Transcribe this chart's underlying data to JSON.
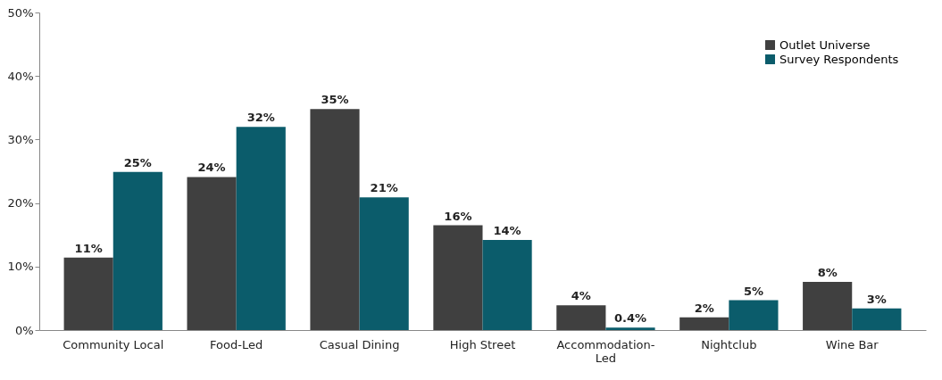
{
  "chart_data": {
    "type": "bar",
    "categories": [
      "Community Local",
      "Food-Led",
      "Casual Dining",
      "High Street",
      "Accommodation-Led",
      "Nightclub",
      "Wine Bar"
    ],
    "series": [
      {
        "name": "Outlet Universe",
        "color": "#404040",
        "values": [
          11.4,
          24.1,
          34.8,
          16.5,
          3.9,
          2.0,
          7.6
        ],
        "value_labels": [
          "11%",
          "24%",
          "35%",
          "16%",
          "4%",
          "2%",
          "8%"
        ]
      },
      {
        "name": "Survey Respondents",
        "color": "#0b5c6b",
        "values": [
          24.9,
          32.0,
          20.9,
          14.2,
          0.4,
          4.7,
          3.4
        ],
        "value_labels": [
          "25%",
          "32%",
          "21%",
          "14%",
          "0.4%",
          "5%",
          "3%"
        ]
      }
    ],
    "ylim": [
      0,
      50
    ],
    "yticks": [
      {
        "value": 0,
        "label": "0%"
      },
      {
        "value": 10,
        "label": "10%"
      },
      {
        "value": 20,
        "label": "20%"
      },
      {
        "value": 30,
        "label": "30%"
      },
      {
        "value": 40,
        "label": "40%"
      },
      {
        "value": 50,
        "label": "50%"
      }
    ],
    "legend": "top right",
    "grid": false
  }
}
